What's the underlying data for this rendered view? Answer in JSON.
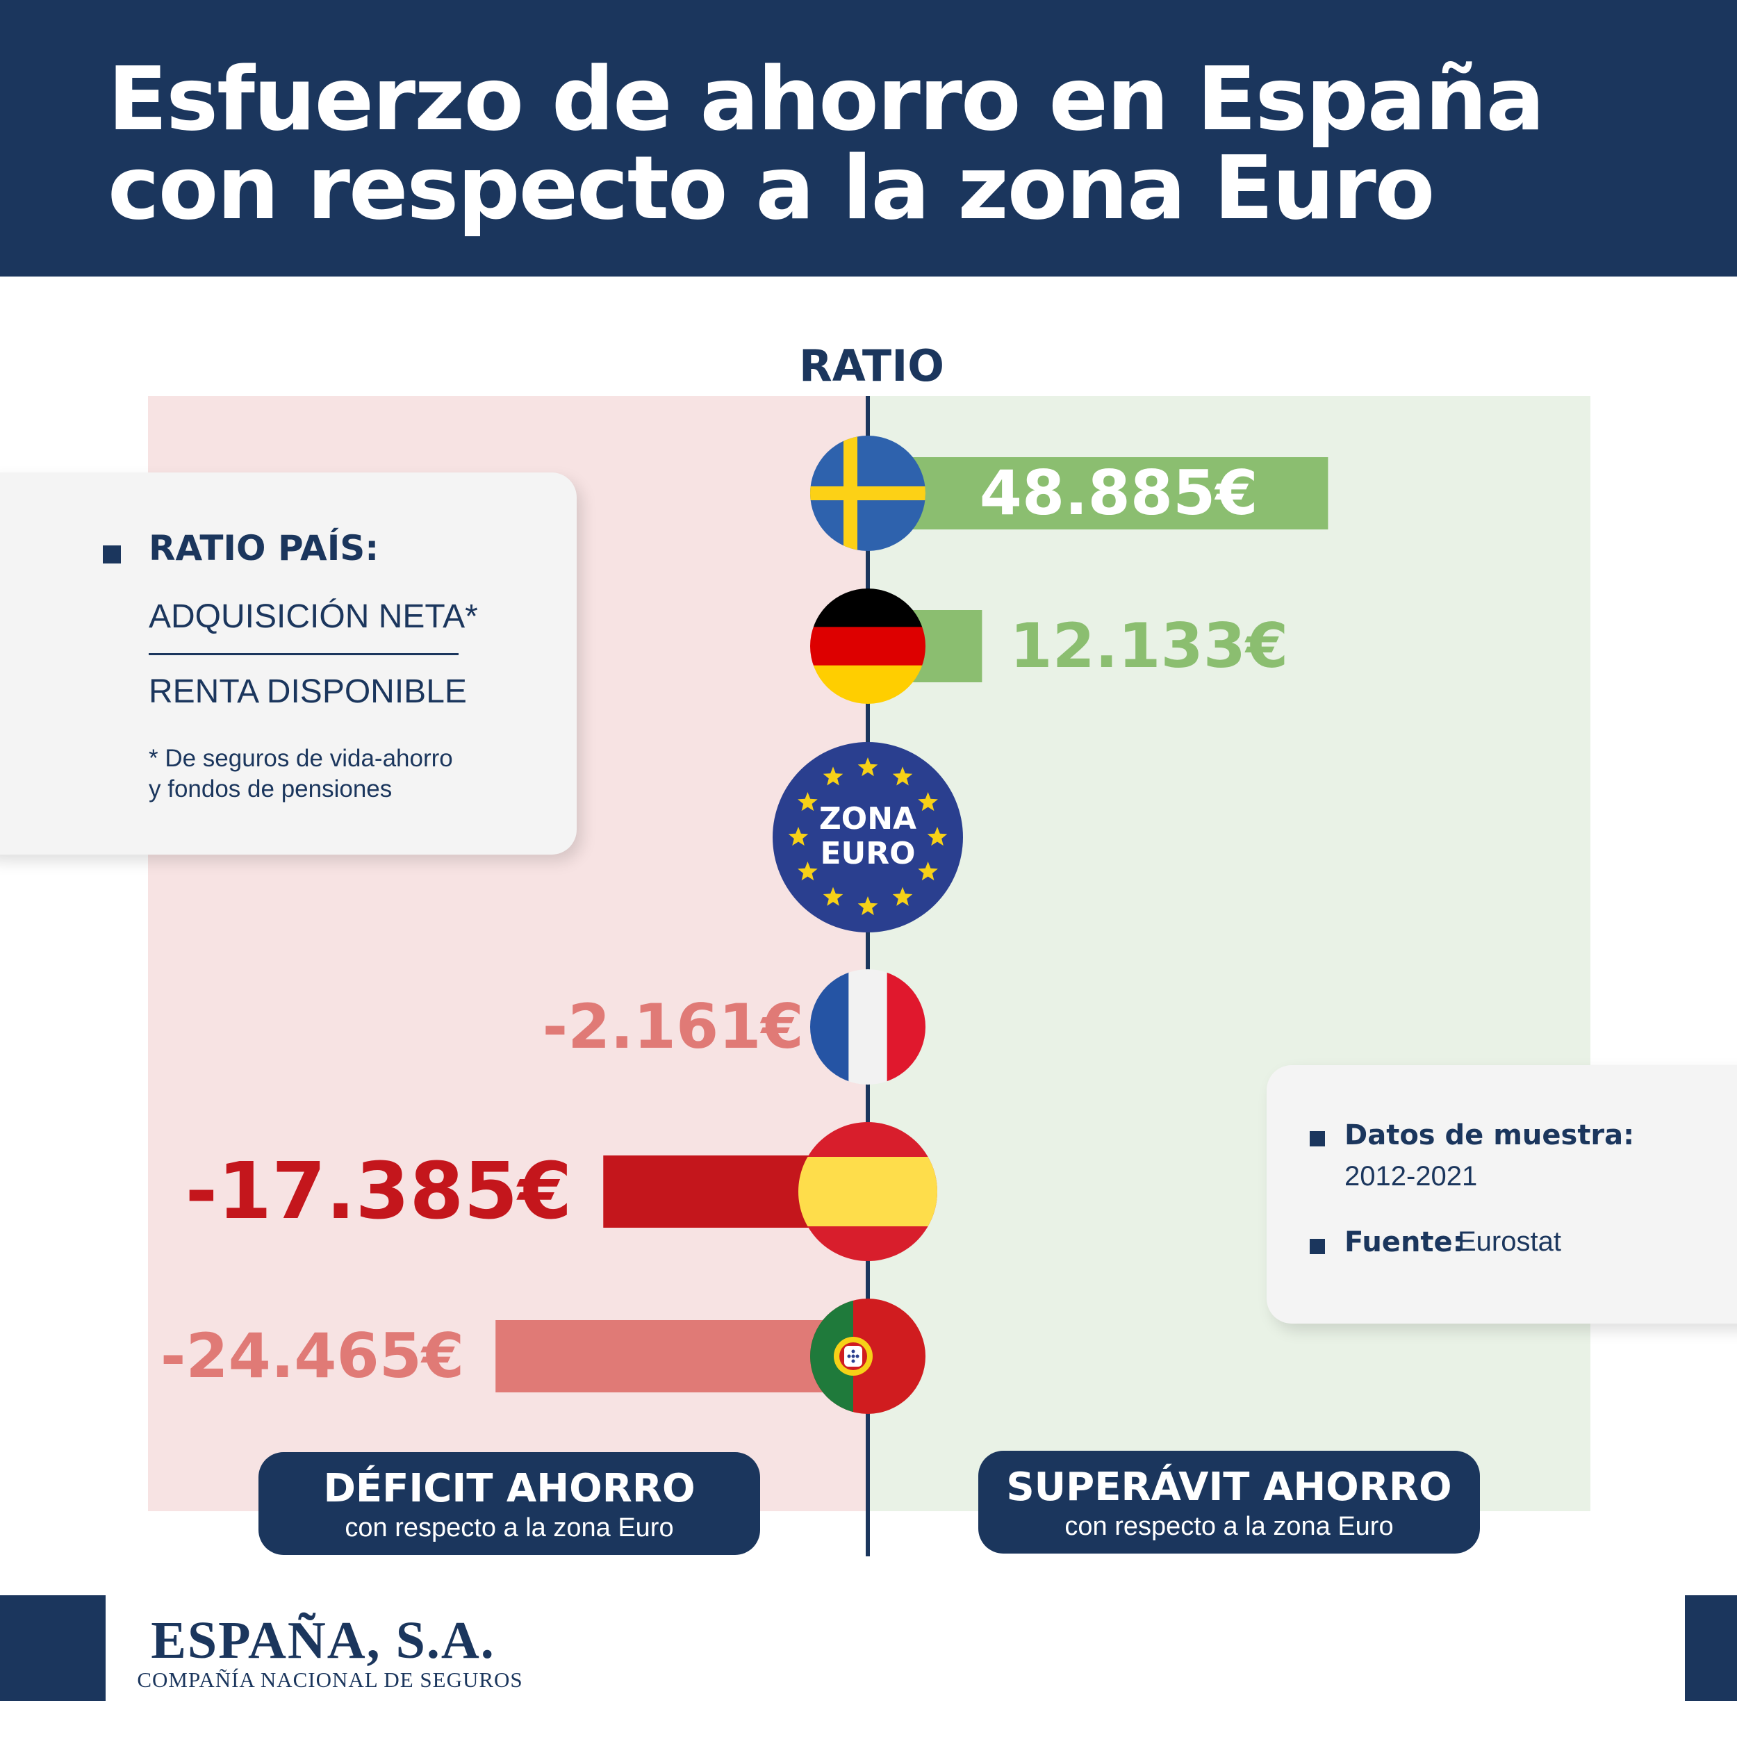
{
  "header": {
    "title_line1": "Esfuerzo de ahorro en España",
    "title_line2": "con respecto a la zona Euro"
  },
  "colors": {
    "navy": "#1b365d",
    "positive": "#8bbe70",
    "negative_light": "#e07a76",
    "negative_strong": "#c4161c",
    "bg_deficit": "#f7e3e3",
    "bg_surplus": "#e9f2e6"
  },
  "chart_data": {
    "type": "bar",
    "title": "RATIO",
    "orientation": "horizontal-diverging",
    "unit": "€",
    "reference": "ZONA EURO",
    "categories": [
      "Suecia",
      "Alemania",
      "Zona Euro",
      "Francia",
      "España",
      "Portugal"
    ],
    "values": [
      48885,
      12133,
      0,
      -2161,
      -17385,
      -24465
    ],
    "value_labels": [
      "48.885€",
      "12.133€",
      "",
      "-2.161€",
      "-17.385€",
      "-24.465€"
    ],
    "flag_icons": [
      "sweden-flag-icon",
      "germany-flag-icon",
      "eu-flag-icon",
      "france-flag-icon",
      "spain-flag-icon",
      "portugal-flag-icon"
    ],
    "highlight": "España",
    "xlim": [
      -30000,
      55000
    ],
    "grid": false
  },
  "eu_badge": {
    "line1": "ZONA",
    "line2": "EURO"
  },
  "legend_card": {
    "heading": "RATIO PAÍS:",
    "numerator": "ADQUISICIÓN NETA*",
    "denominator": "RENTA DISPONIBLE",
    "footnote_line1": "* De seguros de vida-ahorro",
    "footnote_line2": "y fondos de pensiones"
  },
  "info_card": {
    "sample_label": "Datos de muestra:",
    "sample_value": "2012-2021",
    "source_label": "Fuente:",
    "source_value": "Eurostat"
  },
  "labels": {
    "deficit_title": "DÉFICIT AHORRO",
    "deficit_sub": "con respecto a la zona Euro",
    "surplus_title": "SUPERÁVIT AHORRO",
    "surplus_sub": "con respecto a la zona Euro"
  },
  "logo": {
    "name": "ESPAÑA, S.A.",
    "tagline": "COMPAÑÍA NACIONAL DE SEGUROS"
  }
}
